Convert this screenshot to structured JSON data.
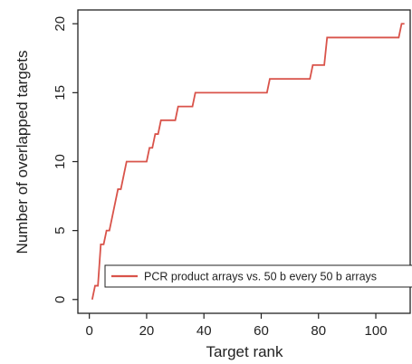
{
  "chart_data": {
    "type": "line",
    "title": "",
    "xlabel": "Target rank",
    "ylabel": "Number of overlapped targets",
    "xlim": [
      -4,
      112
    ],
    "ylim": [
      -1,
      21
    ],
    "xticks": [
      0,
      20,
      40,
      60,
      80,
      100
    ],
    "yticks": [
      0,
      5,
      10,
      15,
      20
    ],
    "grid": false,
    "legend_position": "bottom-right",
    "series": [
      {
        "name": "PCR product arrays vs. 50 b every 50 b arrays",
        "color": "#d9534a",
        "step": true,
        "x": [
          1,
          2,
          3,
          4,
          5,
          6,
          7,
          8,
          9,
          10,
          11,
          12,
          13,
          20,
          21,
          22,
          23,
          24,
          25,
          26,
          30,
          31,
          36,
          37,
          62,
          63,
          77,
          78,
          82,
          83,
          108,
          109,
          110
        ],
        "y": [
          0,
          1,
          1,
          4,
          4,
          5,
          5,
          6,
          7,
          8,
          8,
          9,
          10,
          10,
          11,
          11,
          12,
          12,
          13,
          13,
          13,
          14,
          14,
          15,
          15,
          16,
          16,
          17,
          17,
          19,
          19,
          20,
          20
        ]
      }
    ]
  }
}
